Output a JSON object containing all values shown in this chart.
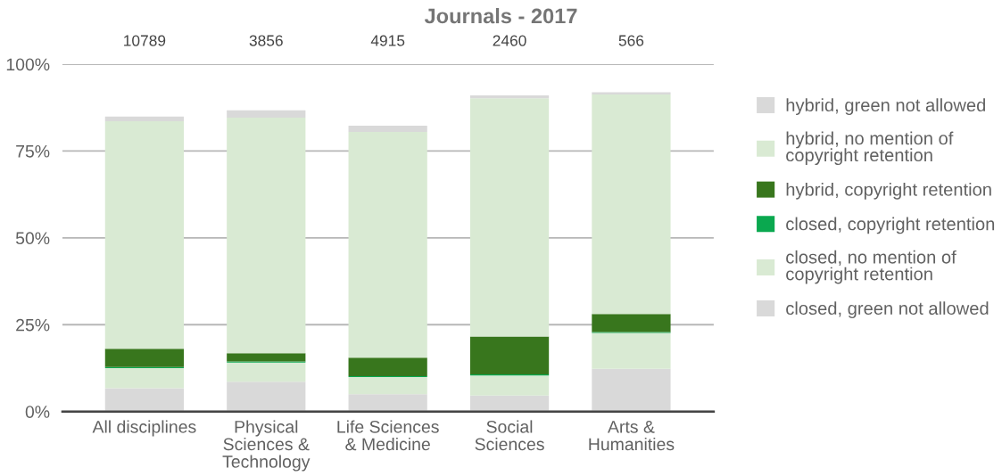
{
  "chart_data": {
    "type": "bar",
    "title": "Journals - 2017",
    "categories": [
      "All disciplines",
      "Physical\nSciences &\nTechnology",
      "Life Sciences\n& Medicine",
      "Social\nSciences",
      "Arts &\nHumanities"
    ],
    "stacked": true,
    "series": [
      {
        "name": "closed, green not allowed",
        "color": "#d9d9d9",
        "values": [
          6.7,
          8.6,
          5.0,
          4.6,
          12.3
        ]
      },
      {
        "name": "closed, no mention of\ncopyright retention",
        "color": "#d9ead3",
        "values": [
          5.8,
          5.5,
          4.9,
          5.8,
          10.3
        ]
      },
      {
        "name": "closed, copyright retention",
        "color": "#0aa84f",
        "values": [
          0.3,
          0.3,
          0.3,
          0.3,
          0.3
        ]
      },
      {
        "name": "hybrid, copyright retention",
        "color": "#38761d",
        "values": [
          5.3,
          2.4,
          5.3,
          10.9,
          5.2
        ]
      },
      {
        "name": "hybrid, no mention of\ncopyright retention",
        "color": "#d9ead3",
        "values": [
          65.5,
          67.8,
          65.0,
          68.6,
          63.2
        ]
      },
      {
        "name": "hybrid, green not allowed",
        "color": "#d9d9d9",
        "values": [
          1.3,
          2.1,
          1.8,
          0.8,
          0.6
        ]
      }
    ],
    "ylim": [
      0,
      100
    ],
    "yticks": [
      {
        "value": 0,
        "label": "0%"
      },
      {
        "value": 25,
        "label": "25%"
      },
      {
        "value": 50,
        "label": "50%"
      },
      {
        "value": 75,
        "label": "75%"
      },
      {
        "value": 100,
        "label": "100%"
      }
    ],
    "grid": "y",
    "legend": "right",
    "annotations": [
      "10789",
      "3856",
      "4915",
      "2460",
      "566"
    ]
  }
}
